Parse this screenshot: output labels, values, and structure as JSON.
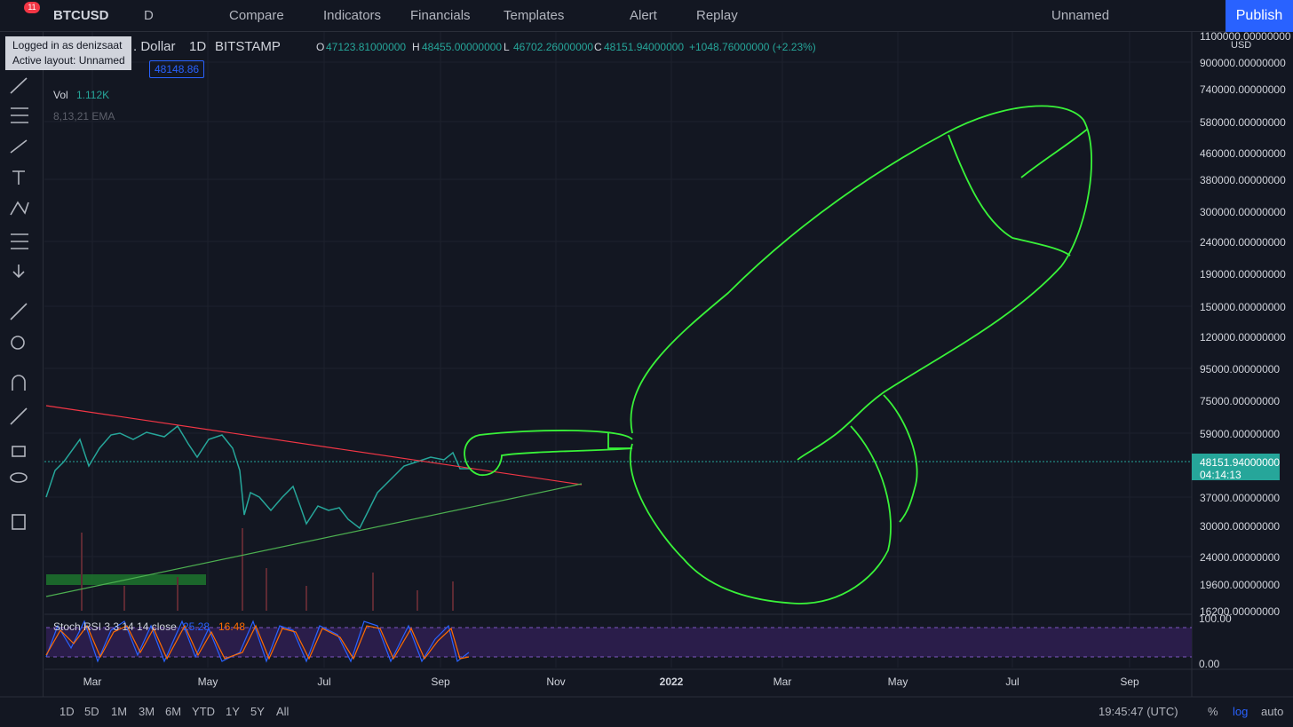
{
  "top_bar": {
    "notification_count": "11",
    "symbol": "BTCUSD",
    "interval": "D",
    "buttons": [
      "Compare",
      "Indicators",
      "Financials",
      "Templates",
      "Alert",
      "Replay"
    ],
    "layout_name": "Unnamed",
    "publish": "Publish"
  },
  "tooltip": {
    "lines": [
      "Logged in as denizsaat",
      "Active layout: Unnamed"
    ]
  },
  "legend": {
    "symbol_name": ". Dollar",
    "interval": "1D",
    "exchange": "BITSTAMP",
    "ohlc": [
      {
        "key": "O",
        "value": "47123.81000000"
      },
      {
        "key": "H",
        "value": "48455.00000000"
      },
      {
        "key": "L",
        "value": "46702.26000000"
      },
      {
        "key": "C",
        "value": "48151.94000000"
      }
    ],
    "change": "+1048.76000000 (+2.23%)",
    "price_box": "48148.86",
    "volume_label": "Vol",
    "volume": "1.112K",
    "ema": "8,13,21 EMA"
  },
  "price_axis": {
    "currency": "USD",
    "labels": [
      "1100000.00000000",
      "900000.00000000",
      "740000.00000000",
      "580000.00000000",
      "460000.00000000",
      "380000.00000000",
      "300000.00000000",
      "240000.00000000",
      "190000.00000000",
      "150000.00000000",
      "120000.00000000",
      "95000.00000000",
      "75000.00000000",
      "59000.00000000",
      "37000.00000000",
      "30000.00000000",
      "24000.00000000",
      "19600.00000000",
      "16200.00000000"
    ],
    "last_price": "48151.94000000",
    "countdown": "04:14:13"
  },
  "stoch_rsi": {
    "title": "Stoch RSI 3 3 14 14 close",
    "k": "25.28",
    "d": "16.48",
    "scale": [
      "100.00",
      "0.00"
    ]
  },
  "time_axis": {
    "labels": [
      "Mar",
      "May",
      "Jul",
      "Sep",
      "Nov",
      "2022",
      "Mar",
      "May",
      "Jul",
      "Sep"
    ]
  },
  "bottom_bar": {
    "ranges": [
      "1D",
      "5D",
      "1M",
      "3M",
      "6M",
      "YTD",
      "1Y",
      "5Y",
      "All"
    ],
    "clock": "19:45:47 (UTC)",
    "options": [
      "%",
      "log",
      "auto"
    ]
  }
}
